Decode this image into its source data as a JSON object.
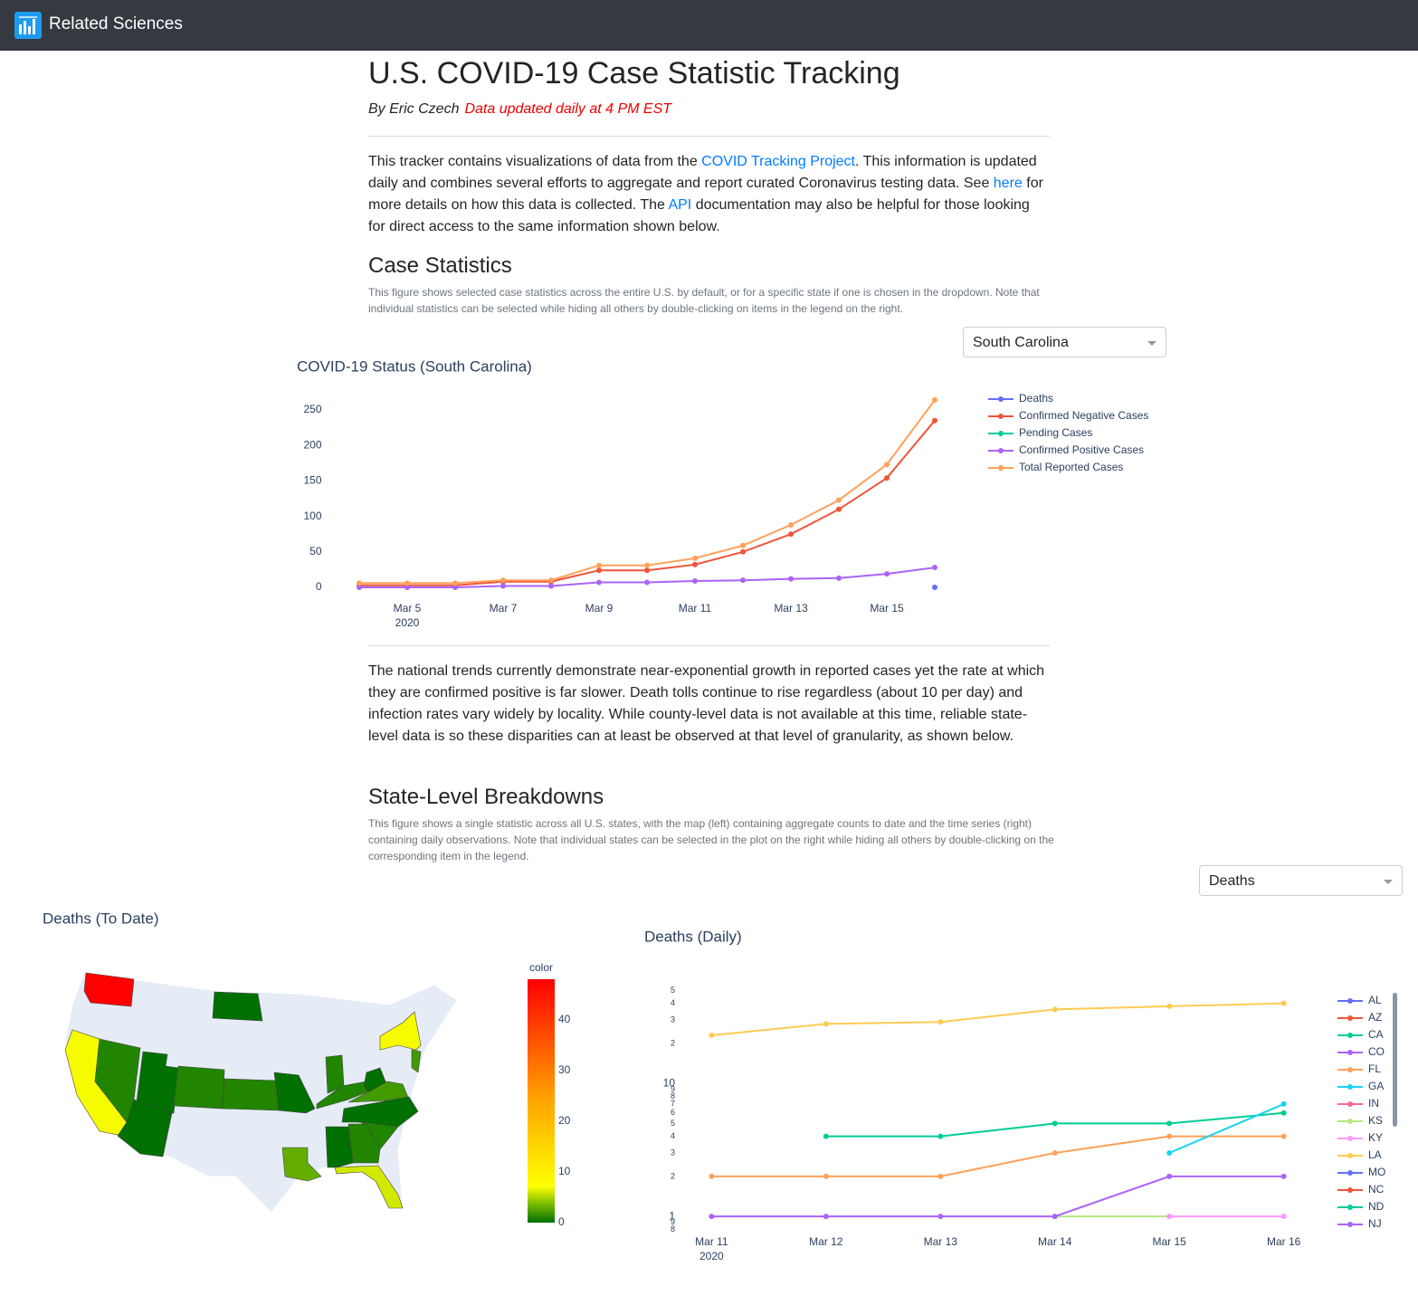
{
  "navbar": {
    "brand": "Related Sciences"
  },
  "header": {
    "title": "U.S. COVID-19 Case Statistic Tracking",
    "author": "By Eric Czech",
    "update_note": "Data updated daily at 4 PM EST"
  },
  "intro": [
    "This tracker contains visualizations of data from the ",
    "COVID Tracking Project",
    ". This information is updated daily and combines several efforts to aggregate and report curated Coronavirus testing data. See ",
    "here",
    " for more details on how this data is collected. The ",
    "API",
    " documentation may also be helpful for those looking for direct access to the same information shown below."
  ],
  "case_section": {
    "heading": "Case Statistics",
    "caption": "This figure shows selected case statistics across the entire U.S. by default, or for a specific state if one is chosen in the dropdown. Note that individual statistics can be selected while hiding all others by double-clicking on items in the legend on the right.",
    "dropdown": "South Carolina"
  },
  "trend_text": "The national trends currently demonstrate near-exponential growth in reported cases yet the rate at which they are confirmed positive is far slower. Death tolls continue to rise regardless (about 10 per day) and infection rates vary widely by locality. While county-level data is not available at this time, reliable state-level data is so these disparities can at least be observed at that level of granularity, as shown below.",
  "state_section": {
    "heading": "State-Level Breakdowns",
    "caption": "This figure shows a single statistic across all U.S. states, with the map (left) containing aggregate counts to date and the time series (right) containing daily observations. Note that individual states can be selected in the plot on the right while hiding all others by double-clicking on the corresponding item in the legend.",
    "dropdown": "Deaths"
  },
  "chart_data": [
    {
      "type": "line",
      "title": "COVID-19 Status (South Carolina)",
      "x": [
        "2020-03-04",
        "2020-03-05",
        "2020-03-06",
        "2020-03-07",
        "2020-03-08",
        "2020-03-09",
        "2020-03-10",
        "2020-03-11",
        "2020-03-12",
        "2020-03-13",
        "2020-03-14",
        "2020-03-15",
        "2020-03-16"
      ],
      "series": [
        {
          "name": "Deaths",
          "color": "#636efa",
          "values": [
            null,
            null,
            null,
            null,
            null,
            null,
            null,
            null,
            null,
            null,
            null,
            null,
            0
          ]
        },
        {
          "name": "Confirmed Negative Cases",
          "color": "#EF553B",
          "values": [
            3,
            3,
            3,
            8,
            8,
            24,
            24,
            32,
            50,
            75,
            110,
            154,
            235
          ]
        },
        {
          "name": "Pending Cases",
          "color": "#00cc96",
          "values": [
            null,
            null,
            null,
            null,
            null,
            null,
            null,
            null,
            null,
            null,
            null,
            null,
            null
          ]
        },
        {
          "name": "Confirmed Positive Cases",
          "color": "#ab63fa",
          "values": [
            0,
            0,
            0,
            2,
            2,
            7,
            7,
            9,
            10,
            12,
            13,
            19,
            28
          ]
        },
        {
          "name": "Total Reported Cases",
          "color": "#FFA15A",
          "values": [
            6,
            6,
            6,
            10,
            10,
            31,
            31,
            41,
            59,
            88,
            123,
            173,
            264
          ]
        }
      ],
      "xlim": [
        "2020-03-03T12:00",
        "2020-03-16T12:00"
      ],
      "xticks": [
        {
          "value": "2020-03-05",
          "label": "Mar 5"
        },
        {
          "value": "2020-03-07",
          "label": "Mar 7"
        },
        {
          "value": "2020-03-09",
          "label": "Mar 9"
        },
        {
          "value": "2020-03-11",
          "label": "Mar 11"
        },
        {
          "value": "2020-03-13",
          "label": "Mar 13"
        },
        {
          "value": "2020-03-15",
          "label": "Mar 15"
        }
      ],
      "xtick_year": "2020",
      "ylim": [
        -14,
        278
      ],
      "yticks": [
        0,
        50,
        100,
        150,
        200,
        250
      ],
      "log_y": false,
      "grid": false,
      "legend": "right"
    },
    {
      "type": "choropleth",
      "title": "Deaths (To Date)",
      "locations": [
        "WA",
        "CA",
        "NV",
        "UT",
        "AZ",
        "CO",
        "KS",
        "ND",
        "MO",
        "IN",
        "KY",
        "WV",
        "VA",
        "NC",
        "SC",
        "GA",
        "AL",
        "LA",
        "FL",
        "NY",
        "NJ"
      ],
      "values": [
        48,
        7,
        1,
        0,
        0,
        1,
        1,
        0,
        0,
        1,
        1,
        0,
        2,
        0,
        1,
        1,
        0,
        3,
        6,
        7,
        2
      ],
      "colorbar_title": "color",
      "colorscale": [
        [
          0,
          "#007000"
        ],
        [
          0.08,
          "#7fbf00"
        ],
        [
          0.15,
          "#ffff00"
        ],
        [
          0.5,
          "#ffa500"
        ],
        [
          1,
          "#ff0000"
        ]
      ],
      "clim": [
        0,
        48
      ],
      "cticks": [
        0,
        10,
        20,
        30,
        40
      ]
    },
    {
      "type": "line",
      "title": "Deaths (Daily)",
      "x": [
        "2020-03-11",
        "2020-03-12",
        "2020-03-13",
        "2020-03-14",
        "2020-03-15",
        "2020-03-16"
      ],
      "series": [
        {
          "name": "AL",
          "color": "#636efa",
          "values": [
            null,
            null,
            null,
            null,
            null,
            null
          ]
        },
        {
          "name": "AZ",
          "color": "#EF553B",
          "values": [
            null,
            null,
            null,
            null,
            null,
            null
          ]
        },
        {
          "name": "CA",
          "color": "#00cc96",
          "values": [
            null,
            4,
            4,
            5,
            5,
            6
          ]
        },
        {
          "name": "CO",
          "color": "#ab63fa",
          "values": [
            null,
            null,
            null,
            null,
            null,
            null
          ]
        },
        {
          "name": "FL",
          "color": "#FFA15A",
          "values": [
            2,
            2,
            2,
            3,
            4,
            4
          ]
        },
        {
          "name": "GA",
          "color": "#19d3f3",
          "values": [
            null,
            null,
            null,
            null,
            3,
            7
          ]
        },
        {
          "name": "IN",
          "color": "#FF6692",
          "values": [
            null,
            null,
            null,
            null,
            null,
            null
          ]
        },
        {
          "name": "KS",
          "color": "#B6E880",
          "values": [
            null,
            null,
            null,
            1,
            1,
            null
          ]
        },
        {
          "name": "KY",
          "color": "#FF97FF",
          "values": [
            null,
            null,
            null,
            null,
            1,
            1
          ]
        },
        {
          "name": "LA",
          "color": "#FECB52",
          "values": [
            23,
            28,
            29,
            36,
            38,
            40
          ]
        },
        {
          "name": "MO",
          "color": "#636efa",
          "values": [
            null,
            null,
            null,
            null,
            null,
            null
          ]
        },
        {
          "name": "NC",
          "color": "#EF553B",
          "values": [
            null,
            null,
            null,
            null,
            null,
            null
          ]
        },
        {
          "name": "ND",
          "color": "#00cc96",
          "values": [
            null,
            null,
            null,
            null,
            null,
            null
          ]
        },
        {
          "name": "NJ",
          "color": "#ab63fa",
          "values": [
            1,
            1,
            1,
            1,
            2,
            2
          ]
        }
      ],
      "xlim": [
        "2020-03-10T19:00",
        "2020-03-16T05:00"
      ],
      "xticks": [
        {
          "value": "2020-03-11",
          "label": "Mar 11"
        },
        {
          "value": "2020-03-12",
          "label": "Mar 12"
        },
        {
          "value": "2020-03-13",
          "label": "Mar 13"
        },
        {
          "value": "2020-03-14",
          "label": "Mar 14"
        },
        {
          "value": "2020-03-15",
          "label": "Mar 15"
        },
        {
          "value": "2020-03-16",
          "label": "Mar 16"
        }
      ],
      "xtick_year": "2020",
      "ylim": [
        0.78,
        54
      ],
      "log_y": true,
      "yticks": [
        {
          "value": 0.8,
          "label": "8"
        },
        {
          "value": 0.9,
          "label": "9"
        },
        1,
        2,
        3,
        4,
        5,
        6,
        7,
        8,
        9,
        10,
        {
          "value": 20,
          "label": "2"
        },
        {
          "value": 30,
          "label": "3"
        },
        {
          "value": 40,
          "label": "4"
        },
        {
          "value": 50,
          "label": "5"
        }
      ],
      "grid": false,
      "legend": "right"
    }
  ]
}
